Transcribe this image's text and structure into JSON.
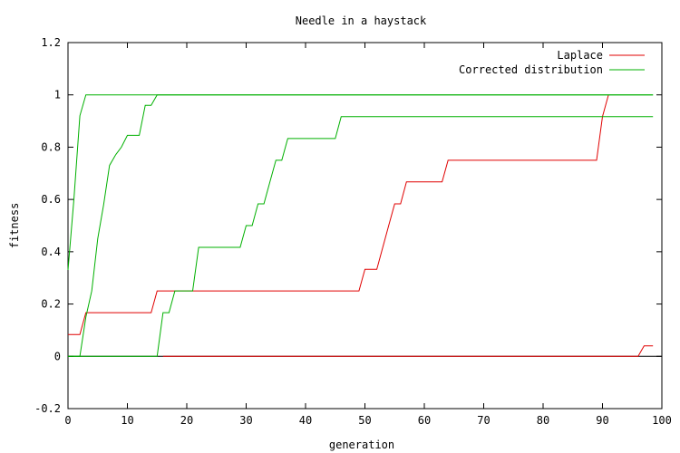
{
  "chart_data": {
    "type": "line",
    "title": "Needle in a haystack",
    "xlabel": "generation",
    "ylabel": "fitness",
    "xlim": [
      0,
      100
    ],
    "ylim": [
      -0.2,
      1.2
    ],
    "xticks": [
      0,
      10,
      20,
      30,
      40,
      50,
      60,
      70,
      80,
      90,
      100
    ],
    "yticks": [
      -0.2,
      0,
      0.2,
      0.4,
      0.6,
      0.8,
      1,
      1.2
    ],
    "xtick_labels": [
      "0",
      "10",
      "20",
      "30",
      "40",
      "50",
      "60",
      "70",
      "80",
      "90",
      "100"
    ],
    "ytick_labels": [
      "-0.2",
      "0",
      "0.2",
      "0.4",
      "0.6",
      "0.8",
      "1",
      "1.2"
    ],
    "grid": false,
    "legend_position": "top-right",
    "series": [
      {
        "name": "Laplace",
        "color": "#e00000",
        "x": [
          0,
          2,
          3,
          14,
          15,
          49,
          50,
          52,
          54,
          55,
          56,
          57,
          63,
          64,
          89,
          90,
          91
        ],
        "y": [
          0.083,
          0.083,
          0.167,
          0.167,
          0.25,
          0.25,
          0.333,
          0.333,
          0.5,
          0.583,
          0.583,
          0.667,
          0.667,
          0.75,
          0.75,
          0.917,
          1.0
        ]
      },
      {
        "name": "",
        "color": "#e00000",
        "x": [
          16,
          96,
          97,
          98.5
        ],
        "y": [
          0.0,
          0.0,
          0.04,
          0.04
        ]
      },
      {
        "name": "Corrected distribution",
        "color": "#00b000",
        "x": [
          0,
          1,
          2,
          3,
          98.5
        ],
        "y": [
          0.33,
          0.6,
          0.92,
          1.0,
          1.0
        ]
      },
      {
        "name": "",
        "color": "#00b000",
        "x": [
          0,
          2,
          3,
          4,
          5,
          6,
          7,
          8,
          9,
          10,
          11,
          12,
          13,
          14,
          15,
          98.5
        ],
        "y": [
          0.0,
          0.0,
          0.15,
          0.25,
          0.45,
          0.58,
          0.73,
          0.77,
          0.8,
          0.845,
          0.845,
          0.845,
          0.96,
          0.96,
          1.0,
          1.0
        ]
      },
      {
        "name": "",
        "color": "#00b000",
        "x": [
          0,
          15,
          16,
          17,
          18,
          19,
          21,
          22,
          29,
          30,
          31,
          32,
          33,
          34,
          35,
          36,
          37,
          44,
          45,
          46,
          98.5
        ],
        "y": [
          0.0,
          0.0,
          0.167,
          0.167,
          0.25,
          0.25,
          0.25,
          0.417,
          0.417,
          0.5,
          0.5,
          0.583,
          0.583,
          0.667,
          0.75,
          0.75,
          0.833,
          0.833,
          0.833,
          0.917,
          0.917
        ]
      }
    ]
  }
}
